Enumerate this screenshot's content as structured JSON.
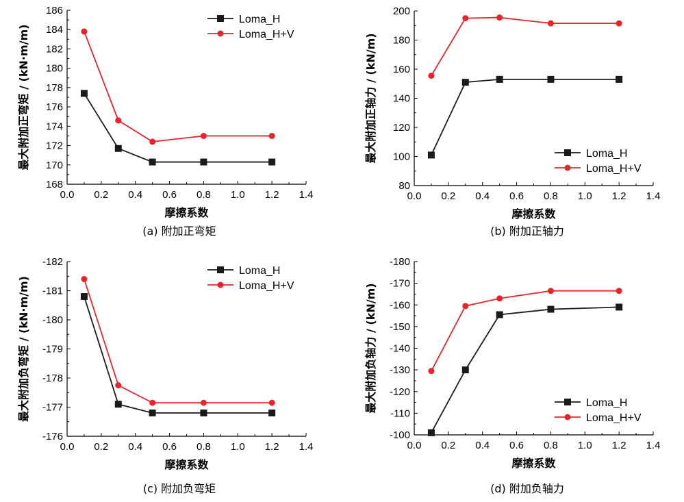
{
  "colors": {
    "series_h": "#1a1a1a",
    "series_hv": "#e8242b",
    "axis": "#000000"
  },
  "chart_data": [
    {
      "type": "line",
      "xlabel": "摩擦系数",
      "ylabel": "最大附加正弯矩 / (kN·m/m)",
      "caption": "(a) 附加正弯矩",
      "xlim": [
        0.0,
        1.4
      ],
      "ylim": [
        168,
        186
      ],
      "xticks": [
        "0.0",
        "0.2",
        "0.4",
        "0.6",
        "0.8",
        "1.0",
        "1.2",
        "1.4"
      ],
      "yticks": [
        "168",
        "170",
        "172",
        "174",
        "176",
        "178",
        "180",
        "182",
        "184",
        "186"
      ],
      "x": [
        0.1,
        0.3,
        0.5,
        0.8,
        1.2
      ],
      "legend_position": "top-right",
      "series": [
        {
          "name": "Loma_H",
          "marker": "square",
          "values": [
            177.4,
            171.7,
            170.3,
            170.3,
            170.3
          ]
        },
        {
          "name": "Loma_H+V",
          "marker": "circle",
          "values": [
            183.8,
            174.6,
            172.4,
            173.0,
            173.0
          ]
        }
      ]
    },
    {
      "type": "line",
      "xlabel": "摩擦系数",
      "ylabel": "最大附加正轴力 / (kN/m)",
      "caption": "(b) 附加正轴力",
      "xlim": [
        0.0,
        1.4
      ],
      "ylim": [
        80,
        200
      ],
      "xticks": [
        "0.0",
        "0.2",
        "0.4",
        "0.6",
        "0.8",
        "1.0",
        "1.2",
        "1.4"
      ],
      "yticks": [
        "80",
        "100",
        "120",
        "140",
        "160",
        "180",
        "200"
      ],
      "x": [
        0.1,
        0.3,
        0.5,
        0.8,
        1.2
      ],
      "legend_position": "bottom-right",
      "series": [
        {
          "name": "Loma_H",
          "marker": "square",
          "values": [
            101,
            151,
            153,
            153,
            153
          ]
        },
        {
          "name": "Loma_H+V",
          "marker": "circle",
          "values": [
            155.5,
            195,
            195.5,
            191.5,
            191.5
          ]
        }
      ]
    },
    {
      "type": "line",
      "xlabel": "摩擦系数",
      "ylabel": "最大附加负弯矩 / (kN·m/m)",
      "caption": "(c) 附加负弯矩",
      "xlim": [
        0.0,
        1.4
      ],
      "ylim": [
        -176,
        -182
      ],
      "xticks": [
        "0.0",
        "0.2",
        "0.4",
        "0.6",
        "0.8",
        "1.0",
        "1.2",
        "1.4"
      ],
      "yticks": [
        "-176",
        "-177",
        "-178",
        "-179",
        "-180",
        "-181",
        "-182"
      ],
      "x": [
        0.1,
        0.3,
        0.5,
        0.8,
        1.2
      ],
      "legend_position": "top-right",
      "series": [
        {
          "name": "Loma_H",
          "marker": "square",
          "values": [
            -180.8,
            -177.1,
            -176.8,
            -176.8,
            -176.8
          ]
        },
        {
          "name": "Loma_H+V",
          "marker": "circle",
          "values": [
            -181.4,
            -177.75,
            -177.15,
            -177.15,
            -177.15
          ]
        }
      ]
    },
    {
      "type": "line",
      "xlabel": "摩擦系数",
      "ylabel": "最大附加负轴力 / (kN/m)",
      "caption": "(d) 附加负轴力",
      "xlim": [
        0.0,
        1.4
      ],
      "ylim": [
        -100,
        -180
      ],
      "xticks": [
        "0.0",
        "0.2",
        "0.4",
        "0.6",
        "0.8",
        "1.0",
        "1.2",
        "1.4"
      ],
      "yticks": [
        "-100",
        "-110",
        "-120",
        "-130",
        "-140",
        "-150",
        "-160",
        "-170",
        "-180"
      ],
      "x": [
        0.1,
        0.3,
        0.5,
        0.8,
        1.2
      ],
      "legend_position": "bottom-right",
      "series": [
        {
          "name": "Loma_H",
          "marker": "square",
          "values": [
            -101,
            -130,
            -155.5,
            -158,
            -159
          ]
        },
        {
          "name": "Loma_H+V",
          "marker": "circle",
          "values": [
            -129.5,
            -159.5,
            -163,
            -166.5,
            -166.5
          ]
        }
      ]
    }
  ]
}
